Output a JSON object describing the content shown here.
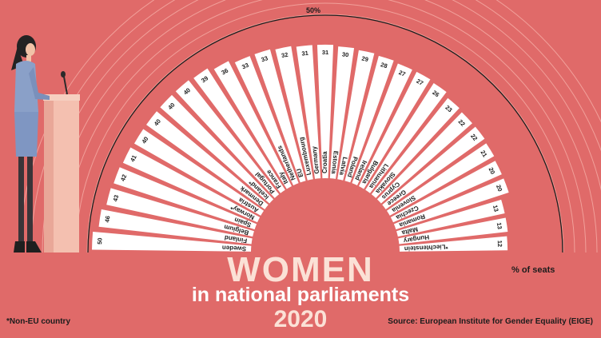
{
  "chart_data": {
    "type": "bar",
    "title": "WOMEN",
    "subtitle": "in national parliaments",
    "year": "2020",
    "unit_label": "% of seats",
    "reference_line_label": "50%",
    "reference_line_value": 50,
    "footnote": "*Non-EU country",
    "source": "Source: European Institute for Gender Equality (EIGE)",
    "highlight_category": "EU",
    "highlight_color": "#f2a8a0",
    "bar_color": "#ffffff",
    "background_color": "#e06a69",
    "categories": [
      "Sweden",
      "Finland",
      "Belgium",
      "Spain",
      "Norway*",
      "Austria",
      "Denmark",
      "Iceland*",
      "Portugal",
      "France",
      "Italy",
      "Netherlands",
      "EU",
      "Luxembourg",
      "Germany",
      "Croatia",
      "Estonia",
      "Latvia",
      "Poland",
      "Ireland",
      "Bulgaria",
      "Lithuania",
      "Slovakia",
      "Cyprus",
      "Greece",
      "Slovenia",
      "Czechia",
      "Romania",
      "Malta",
      "Hungary",
      "*Liechtenstein"
    ],
    "values": [
      50,
      46,
      43,
      42,
      41,
      40,
      40,
      40,
      40,
      39,
      36,
      33,
      33,
      32,
      31,
      31,
      30,
      29,
      28,
      27,
      27,
      26,
      23,
      22,
      22,
      21,
      20,
      20,
      13,
      13,
      12
    ]
  }
}
